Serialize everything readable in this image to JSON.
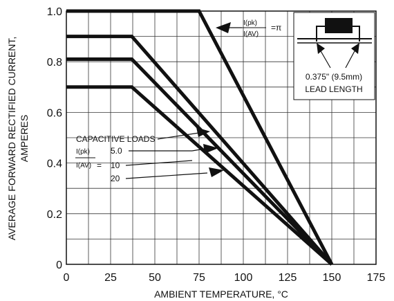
{
  "chart_data": {
    "type": "line",
    "title": "",
    "xlabel": "AMBIENT TEMPERATURE, °C",
    "ylabel_line1": "AVERAGE FORWARD RECTIFIED CURRENT,",
    "ylabel_line2": "AMPERES",
    "xlim": [
      0,
      175
    ],
    "ylim": [
      0,
      1.0
    ],
    "x_ticks": [
      "0",
      "25",
      "50",
      "75",
      "100",
      "125",
      "150",
      "175"
    ],
    "y_ticks": [
      "0",
      "0.2",
      "0.4",
      "0.6",
      "0.8",
      "1.0"
    ],
    "grid": true,
    "series": [
      {
        "ratio": "π",
        "points": [
          [
            0,
            1.0
          ],
          [
            75,
            1.0
          ],
          [
            150,
            0
          ]
        ]
      },
      {
        "ratio": "5.0",
        "points": [
          [
            0,
            0.9
          ],
          [
            37,
            0.9
          ],
          [
            150,
            0
          ]
        ]
      },
      {
        "ratio": "10",
        "points": [
          [
            0,
            0.81
          ],
          [
            37,
            0.81
          ],
          [
            150,
            0
          ]
        ]
      },
      {
        "ratio": "20",
        "points": [
          [
            0,
            0.7
          ],
          [
            37,
            0.7
          ],
          [
            150,
            0
          ]
        ]
      }
    ]
  },
  "annotations": {
    "ratio_top_num": "I(pk)",
    "ratio_top_den": "I(AV)",
    "ratio_top_value": "=π",
    "lead_length_line1": "0.375\" (9.5mm)",
    "lead_length_line2": "LEAD LENGTH",
    "capacitive_loads": "CAPACITIVE LOADS",
    "ratio_num": "I(pk)",
    "ratio_den": "I(AV)",
    "ratio_eq": "=",
    "load_values": [
      "5.0",
      "10",
      "20"
    ]
  }
}
